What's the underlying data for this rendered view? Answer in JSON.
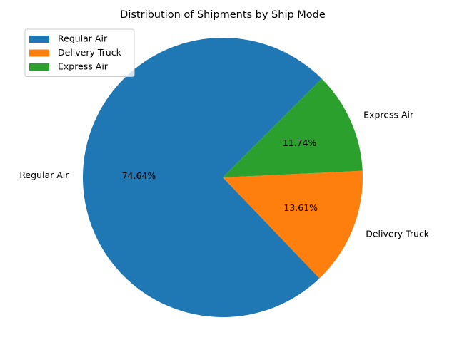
{
  "chart_data": {
    "type": "pie",
    "title": "Distribution of Shipments by Ship Mode",
    "categories": [
      "Regular Air",
      "Delivery Truck",
      "Express Air"
    ],
    "values": [
      74.64,
      13.61,
      11.74
    ],
    "percent_labels": [
      "74.64%",
      "13.61%",
      "11.74%"
    ],
    "colors": [
      "#1f77b4",
      "#ff7f0e",
      "#2ca02c"
    ],
    "start_angle_deg": 45,
    "direction": "counterclockwise",
    "legend": {
      "position": "top-left",
      "entries": [
        "Regular Air",
        "Delivery Truck",
        "Express Air"
      ]
    }
  }
}
